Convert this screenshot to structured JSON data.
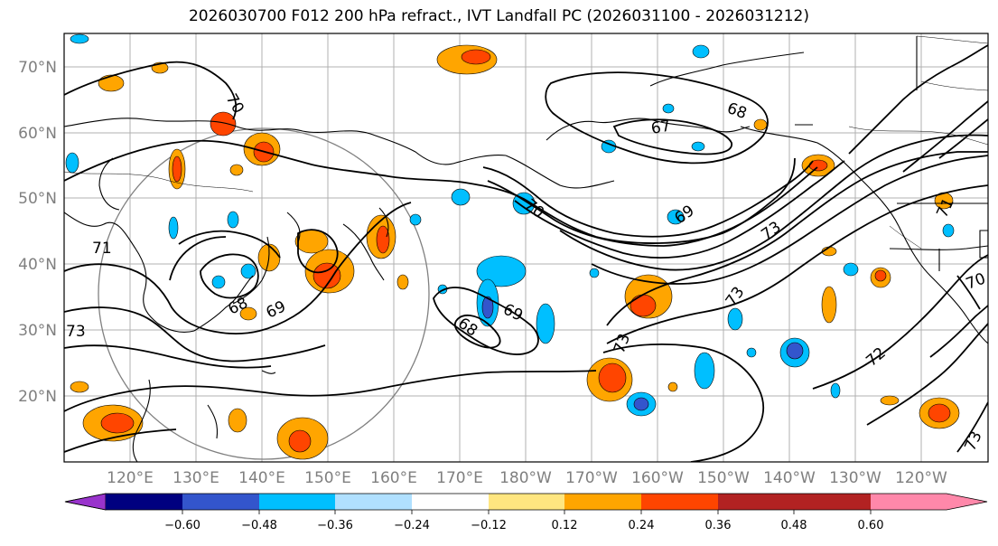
{
  "title": "2026030700 F012 200 hPa refract., IVT Landfall PC (2026031100 - 2026031212)",
  "map": {
    "lat_labels": [
      "70°N",
      "60°N",
      "50°N",
      "40°N",
      "30°N",
      "20°N"
    ],
    "lon_labels": [
      "120°E",
      "130°E",
      "140°E",
      "150°E",
      "160°E",
      "170°E",
      "180°W",
      "170°W",
      "160°W",
      "150°W",
      "140°W",
      "130°W",
      "120°W"
    ],
    "contour_labels": [
      "70",
      "71",
      "73",
      "68",
      "69",
      "67",
      "68",
      "70",
      "69",
      "73",
      "73",
      "68",
      "69",
      "73",
      "72",
      "71",
      "70",
      "73"
    ]
  },
  "colorbar": {
    "colors": [
      "#9933cc",
      "#000080",
      "#3355cc",
      "#00bfff",
      "#b0e0ff",
      "#ffffff",
      "#ffe680",
      "#ffa500",
      "#ff4500",
      "#b22222",
      "#ff88aa"
    ],
    "tick_labels": [
      "−0.60",
      "−0.48",
      "−0.36",
      "−0.24",
      "−0.12",
      "0.12",
      "0.24",
      "0.36",
      "0.48",
      "0.60"
    ]
  }
}
